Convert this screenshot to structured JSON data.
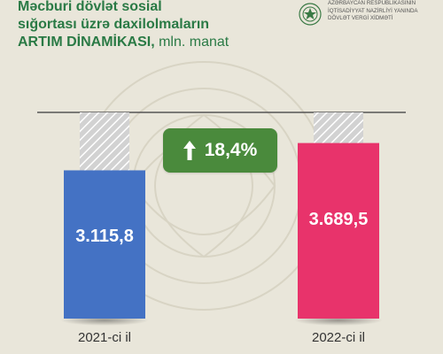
{
  "header": {
    "title_lines": [
      "Məcburi dövlət sosial",
      "sığortası üzrə daxilolmaların"
    ],
    "title_line3": "ARTIM DİNAMİKASI,",
    "title_unit": " mln. manat"
  },
  "org": {
    "icon": "state-emblem-icon",
    "lines": [
      "AZƏRBAYCAN RESPUBLİKASININ",
      "İQTİSADİYYAT NAZİRLİYİ YANINDA",
      "DÖVLƏT VERGİ XİDMƏTİ"
    ]
  },
  "growth": {
    "icon": "arrow-up-icon",
    "label": "18,4%"
  },
  "chart_data": {
    "type": "bar",
    "categories": [
      "2021-ci il",
      "2022-ci il"
    ],
    "category_sub": [
      "",
      ""
    ],
    "values": [
      3115.8,
      3689.5
    ],
    "value_labels": [
      "3.115,8",
      "3.689,5"
    ],
    "colors": [
      "#4472c4",
      "#e8336b"
    ],
    "reference_max": 4333.2
  }
}
